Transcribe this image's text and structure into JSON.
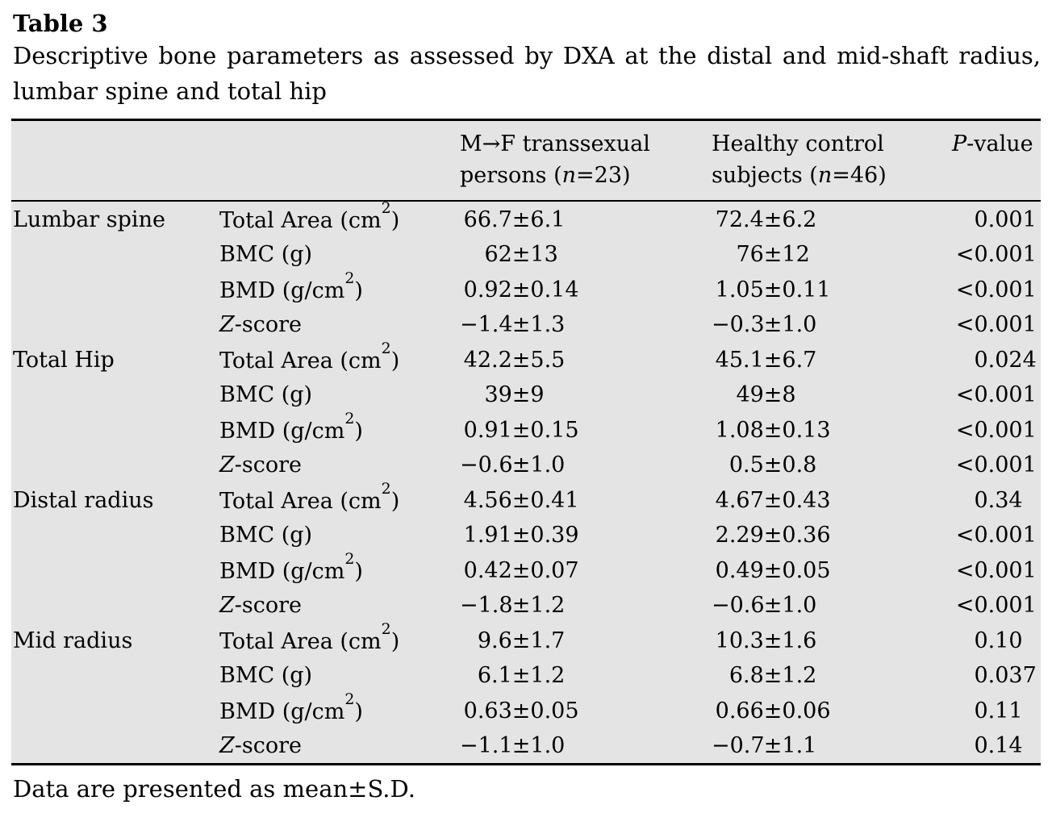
{
  "page": {
    "title": "Table 3",
    "caption": "Descriptive bone parameters as assessed by DXA at the distal and mid-shaft radius, lumbar spine and total hip",
    "footnote": "Data are presented as mean±S.D."
  },
  "colors": {
    "table_bg": "#e4e4e4",
    "rule": "#000000",
    "text": "#000000",
    "page_bg": "#ffffff"
  },
  "table": {
    "header": {
      "mf": {
        "line1": "M→F transsexual",
        "line2_pre": "persons (",
        "n": "n",
        "line2_post": "=23)"
      },
      "hc": {
        "line1": "Healthy control",
        "line2_pre": "subjects (",
        "n": "n",
        "line2_post": "=46)"
      },
      "p": {
        "italic": "P",
        "rest": "-value"
      }
    },
    "groups": [
      {
        "site": "Lumbar spine",
        "rows": [
          {
            "param": "Total Area (cm²)",
            "param_italic_first": false,
            "mf": "66.7±6.1",
            "hc": "72.4±6.2",
            "p": "0.001"
          },
          {
            "param": "BMC (g)",
            "param_italic_first": false,
            "mf": "62±13",
            "hc": "76±12",
            "p": "<0.001"
          },
          {
            "param": "BMD (g/cm²)",
            "param_italic_first": false,
            "mf": "0.92±0.14",
            "hc": "1.05±0.11",
            "p": "<0.001"
          },
          {
            "param": "Z-score",
            "param_italic_first": true,
            "mf": "−1.4±1.3",
            "hc": "−0.3±1.0",
            "p": "<0.001"
          }
        ]
      },
      {
        "site": "Total Hip",
        "rows": [
          {
            "param": "Total Area (cm²)",
            "param_italic_first": false,
            "mf": "42.2±5.5",
            "hc": "45.1±6.7",
            "p": "0.024"
          },
          {
            "param": "BMC (g)",
            "param_italic_first": false,
            "mf": "39±9",
            "hc": "49±8",
            "p": "<0.001"
          },
          {
            "param": "BMD (g/cm²)",
            "param_italic_first": false,
            "mf": "0.91±0.15",
            "hc": "1.08±0.13",
            "p": "<0.001"
          },
          {
            "param": "Z-score",
            "param_italic_first": true,
            "mf": "−0.6±1.0",
            "hc": "0.5±0.8",
            "p": "<0.001"
          }
        ]
      },
      {
        "site": "Distal radius",
        "rows": [
          {
            "param": "Total Area (cm²)",
            "param_italic_first": false,
            "mf": "4.56±0.41",
            "hc": "4.67±0.43",
            "p": "0.34"
          },
          {
            "param": "BMC (g)",
            "param_italic_first": false,
            "mf": "1.91±0.39",
            "hc": "2.29±0.36",
            "p": "<0.001"
          },
          {
            "param": "BMD (g/cm²)",
            "param_italic_first": false,
            "mf": "0.42±0.07",
            "hc": "0.49±0.05",
            "p": "<0.001"
          },
          {
            "param": "Z-score",
            "param_italic_first": true,
            "mf": "−1.8±1.2",
            "hc": "−0.6±1.0",
            "p": "<0.001"
          }
        ]
      },
      {
        "site": "Mid radius",
        "rows": [
          {
            "param": "Total Area (cm²)",
            "param_italic_first": false,
            "mf": "9.6±1.7",
            "hc": "10.3±1.6",
            "p": "0.10"
          },
          {
            "param": "BMC (g)",
            "param_italic_first": false,
            "mf": "6.1±1.2",
            "hc": "6.8±1.2",
            "p": "0.037"
          },
          {
            "param": "BMD (g/cm²)",
            "param_italic_first": false,
            "mf": "0.63±0.05",
            "hc": "0.66±0.06",
            "p": "0.11"
          },
          {
            "param": "Z-score",
            "param_italic_first": true,
            "mf": "−1.1±1.0",
            "hc": "−0.7±1.1",
            "p": "0.14"
          }
        ]
      }
    ]
  }
}
